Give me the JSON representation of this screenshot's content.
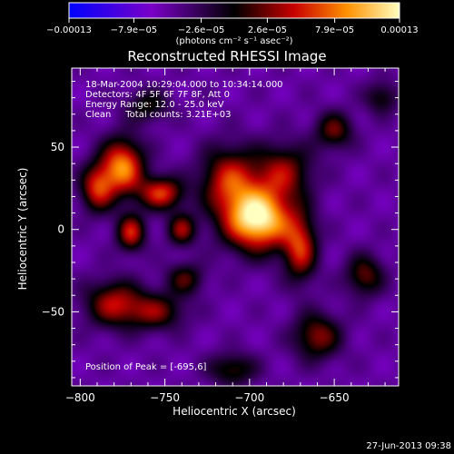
{
  "chart_data": {
    "type": "heatmap",
    "title": "Reconstructed RHESSI Image",
    "xlabel": "Heliocentric X (arcsec)",
    "ylabel": "Heliocentric Y (arcsec)",
    "xlim": [
      -805,
      -612
    ],
    "ylim": [
      -95,
      98
    ],
    "x_ticks": [
      -800,
      -750,
      -700,
      -650
    ],
    "x_tick_labels": [
      "−800",
      "−750",
      "−700",
      "−650"
    ],
    "y_ticks": [
      -50,
      0,
      50
    ],
    "y_tick_labels": [
      "−50",
      "0",
      "50"
    ],
    "colorbar": {
      "range": [
        -0.00013,
        0.00013
      ],
      "ticks": [
        -0.00013,
        -7.9e-05,
        -2.6e-05,
        2.6e-05,
        7.9e-05,
        0.00013
      ],
      "tick_labels": [
        "−0.00013",
        "−7.9e−05",
        "−2.6e−05",
        "2.6e−05",
        "7.9e−05",
        "0.00013"
      ],
      "units_label": "(photons cm⁻² s⁻¹ asec⁻²)",
      "colors": [
        "#0000ff",
        "#7a00c8",
        "#000000",
        "#c80000",
        "#ff9000",
        "#ffffc0"
      ]
    },
    "annotations": [
      "18-Mar-2004 10:29:04.000 to 10:34:14.000",
      "Detectors: 4F 5F 6F 7F 8F, Att 0",
      "Energy Range: 12.0 - 25.0 keV",
      "Clean     Total counts: 3.21E+03"
    ],
    "peak_label": "Position of Peak = [-695,6]",
    "peak": [
      -695,
      6
    ],
    "sources": [
      {
        "x": -695,
        "y": 6,
        "sx": 14,
        "sy": 13,
        "a": 1.0
      },
      {
        "x": -712,
        "y": 30,
        "sx": 12,
        "sy": 14,
        "a": 0.55
      },
      {
        "x": -680,
        "y": 35,
        "sx": 12,
        "sy": 12,
        "a": 0.45
      },
      {
        "x": -775,
        "y": 38,
        "sx": 9,
        "sy": 12,
        "a": 0.75
      },
      {
        "x": -790,
        "y": 25,
        "sx": 7,
        "sy": 10,
        "a": 0.55
      },
      {
        "x": -752,
        "y": 22,
        "sx": 9,
        "sy": 7,
        "a": 0.6
      },
      {
        "x": -770,
        "y": -2,
        "sx": 6,
        "sy": 8,
        "a": 0.55
      },
      {
        "x": -740,
        "y": 0,
        "sx": 6,
        "sy": 7,
        "a": 0.45
      },
      {
        "x": -780,
        "y": -45,
        "sx": 12,
        "sy": 10,
        "a": 0.5
      },
      {
        "x": -755,
        "y": -50,
        "sx": 12,
        "sy": 8,
        "a": 0.4
      },
      {
        "x": -670,
        "y": -12,
        "sx": 7,
        "sy": 14,
        "a": 0.55
      },
      {
        "x": -660,
        "y": -65,
        "sx": 10,
        "sy": 10,
        "a": 0.45
      },
      {
        "x": -632,
        "y": -28,
        "sx": 8,
        "sy": 9,
        "a": 0.4
      },
      {
        "x": -650,
        "y": 60,
        "sx": 8,
        "sy": 8,
        "a": 0.4
      },
      {
        "x": -738,
        "y": -30,
        "sx": 8,
        "sy": 7,
        "a": 0.35
      },
      {
        "x": -622,
        "y": 80,
        "sx": 7,
        "sy": 7,
        "a": 0.3
      },
      {
        "x": -710,
        "y": -85,
        "sx": 10,
        "sy": 7,
        "a": 0.35
      },
      {
        "x": -760,
        "y": 75,
        "sx": 9,
        "sy": 7,
        "a": 0.3
      }
    ]
  },
  "footer_timestamp": "27-Jun-2013 09:38"
}
